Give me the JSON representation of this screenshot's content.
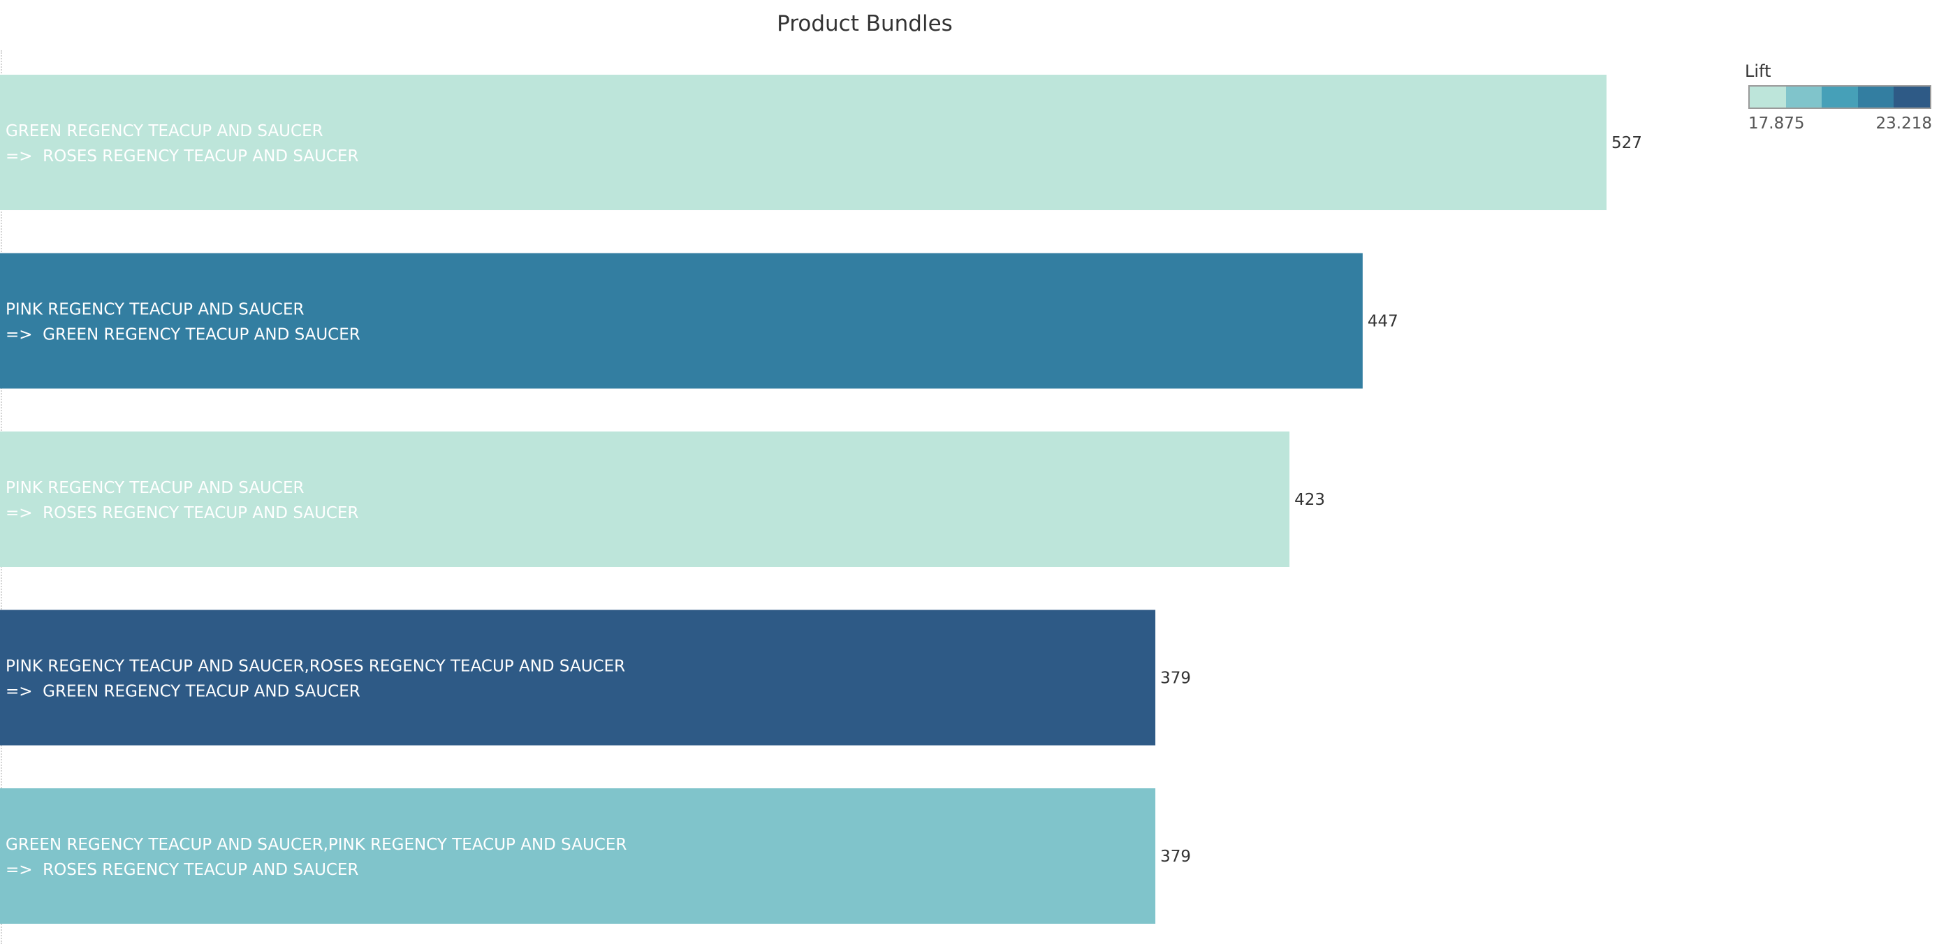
{
  "chart_data": {
    "type": "bar",
    "orientation": "horizontal",
    "title": "Product Bundles",
    "xlabel": "",
    "ylabel": "",
    "xlim": [
      0,
      527
    ],
    "grid": false,
    "legend": {
      "title": "Lift",
      "placement": "top-right",
      "min_label": "17.875",
      "max_label": "23.218",
      "min": 17.875,
      "max": 23.218,
      "palette": [
        "#bde5da",
        "#80c4cb",
        "#46a0b8",
        "#337ea1",
        "#2e5a86"
      ]
    },
    "categories": [
      {
        "line1": "GREEN REGENCY TEACUP AND SAUCER",
        "line2": "=>  ROSES REGENCY TEACUP AND SAUCER"
      },
      {
        "line1": "PINK REGENCY TEACUP AND SAUCER",
        "line2": "=>  GREEN REGENCY TEACUP AND SAUCER"
      },
      {
        "line1": "PINK REGENCY TEACUP AND SAUCER",
        "line2": "=>  ROSES REGENCY TEACUP AND SAUCER"
      },
      {
        "line1": "PINK REGENCY TEACUP AND SAUCER,ROSES REGENCY TEACUP AND SAUCER",
        "line2": "=>  GREEN REGENCY TEACUP AND SAUCER"
      },
      {
        "line1": "GREEN REGENCY TEACUP AND SAUCER,PINK REGENCY TEACUP AND SAUCER",
        "line2": "=>  ROSES REGENCY TEACUP AND SAUCER"
      }
    ],
    "values": [
      527,
      447,
      423,
      379,
      379
    ],
    "value_labels": [
      "527",
      "447",
      "423",
      "379",
      "379"
    ],
    "colors": [
      "#bde5da",
      "#337ea1",
      "#bde5da",
      "#2e5a86",
      "#80c4cb"
    ]
  }
}
